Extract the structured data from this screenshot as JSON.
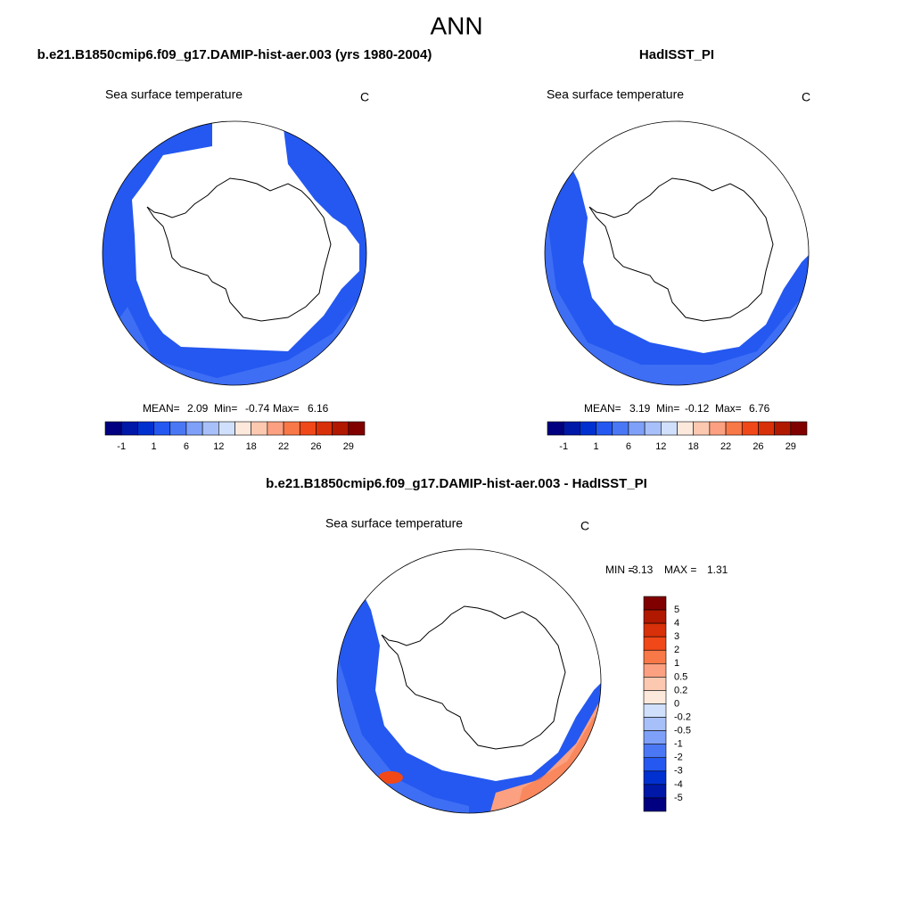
{
  "title": "ANN",
  "panels": [
    {
      "title": "b.e21.B1850cmip6.f09_g17.DAMIP-hist-aer.003 (yrs 1980-2004)",
      "subtitle": "Sea surface temperature",
      "units": "C",
      "stats": {
        "mean_label": "MEAN=",
        "mean": "2.09",
        "min_label": "Min=",
        "min": "-0.74",
        "max_label": "Max=",
        "max": "6.16"
      },
      "colorbar": {
        "labels": [
          "-1",
          "1",
          "6",
          "12",
          "18",
          "22",
          "26",
          "29"
        ],
        "colors": [
          "#000080",
          "#0018a8",
          "#0030d0",
          "#2458f0",
          "#4a78f5",
          "#7ea0f8",
          "#a8c0fa",
          "#d0e0fc",
          "#fde8dc",
          "#fcc8b0",
          "#fba080",
          "#f87848",
          "#f04818",
          "#d83008",
          "#b01800",
          "#800000"
        ]
      }
    },
    {
      "title": "HadISST_PI",
      "subtitle": "Sea surface temperature",
      "units": "C",
      "stats": {
        "mean_label": "MEAN=",
        "mean": "3.19",
        "min_label": "Min=",
        "min": "-0.12",
        "max_label": "Max=",
        "max": "6.76"
      },
      "colorbar": {
        "labels": [
          "-1",
          "1",
          "6",
          "12",
          "18",
          "22",
          "26",
          "29"
        ],
        "colors": [
          "#000080",
          "#0018a8",
          "#0030d0",
          "#2458f0",
          "#4a78f5",
          "#7ea0f8",
          "#a8c0fa",
          "#d0e0fc",
          "#fde8dc",
          "#fcc8b0",
          "#fba080",
          "#f87848",
          "#f04818",
          "#d83008",
          "#b01800",
          "#800000"
        ]
      }
    },
    {
      "title": "b.e21.B1850cmip6.f09_g17.DAMIP-hist-aer.003 - HadISST_PI",
      "subtitle": "Sea surface temperature",
      "units": "C",
      "stats": {
        "min_label": "MIN =",
        "min": "-3.13",
        "max_label": "MAX =",
        "max": "1.31"
      },
      "colorbar": {
        "labels": [
          "5",
          "4",
          "3",
          "2",
          "1",
          "0.5",
          "0.2",
          "0",
          "-0.2",
          "-0.5",
          "-1",
          "-2",
          "-3",
          "-4",
          "-5"
        ],
        "colors": [
          "#800000",
          "#b01800",
          "#d83008",
          "#f04818",
          "#f87848",
          "#fba080",
          "#fcc8b0",
          "#fde8dc",
          "#d0e0fc",
          "#a8c0fa",
          "#7ea0f8",
          "#4a78f5",
          "#2458f0",
          "#0030d0",
          "#0018a8",
          "#000080"
        ]
      }
    }
  ]
}
